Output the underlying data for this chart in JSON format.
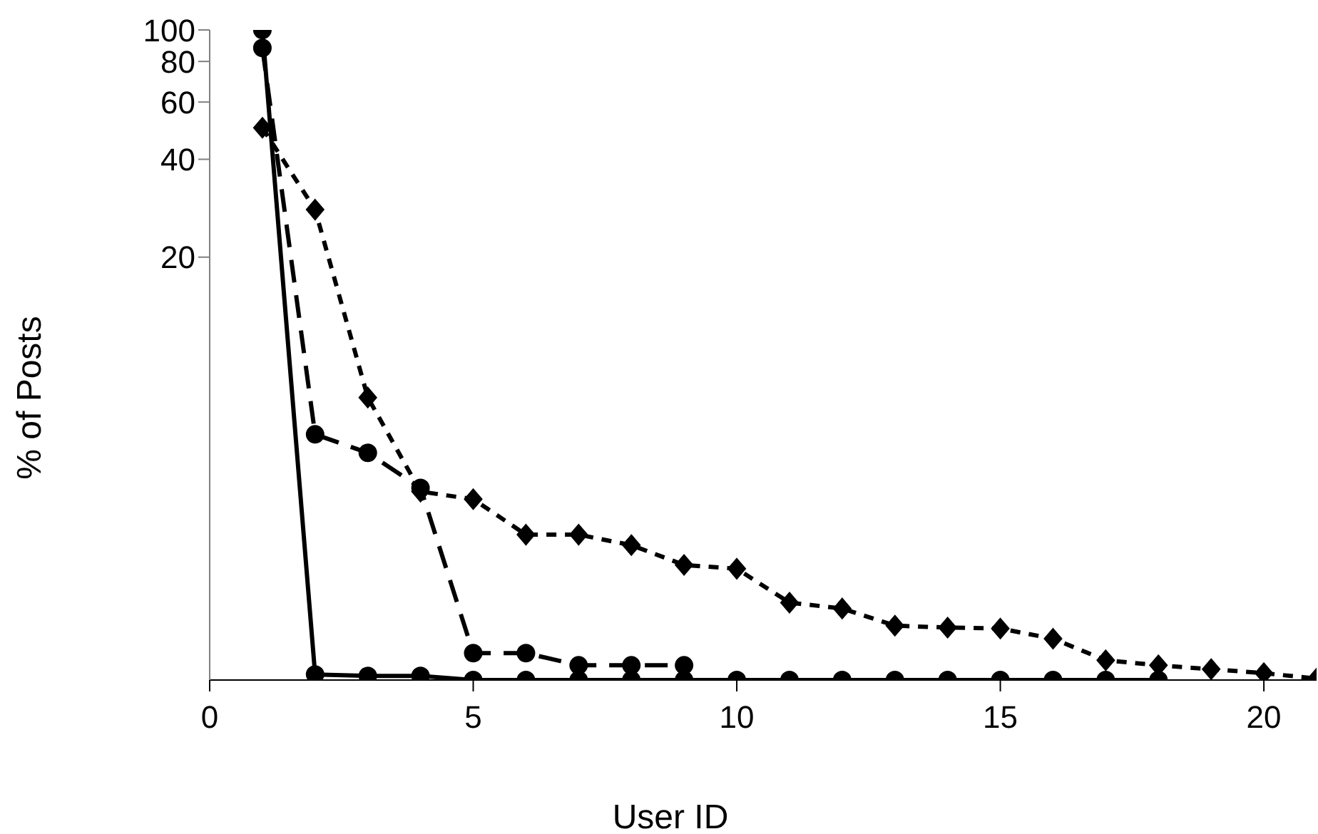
{
  "chart_data": {
    "type": "line",
    "xlabel": "User ID",
    "ylabel": "% of Posts",
    "log": "y",
    "xlim": [
      0,
      21
    ],
    "xticks": [
      0,
      5,
      10,
      15,
      20
    ],
    "ylim": [
      1,
      100
    ],
    "yticks": [
      20,
      40,
      60,
      80,
      100
    ],
    "grid": false,
    "series": [
      {
        "color": "#000000",
        "marker": "circle",
        "line_style": "solid",
        "x": [
          1,
          2,
          3,
          4,
          5,
          6,
          7,
          8,
          9,
          10,
          11,
          12,
          13,
          14,
          15,
          16,
          17,
          18
        ],
        "values": [
          100,
          1.04,
          1.03,
          1.03,
          1,
          1,
          1,
          1,
          1,
          1,
          1,
          1,
          1,
          1,
          1,
          1,
          1,
          1
        ]
      },
      {
        "color": "#000000",
        "marker": "diamond",
        "line_style": "dotted",
        "x": [
          1,
          2,
          3,
          4,
          5,
          6,
          7,
          8,
          9,
          10,
          11,
          12,
          13,
          14,
          15,
          16,
          17,
          18,
          19,
          20,
          21
        ],
        "values": [
          50,
          28,
          7.4,
          3.8,
          3.6,
          2.8,
          2.8,
          2.6,
          2.26,
          2.2,
          1.73,
          1.66,
          1.47,
          1.45,
          1.44,
          1.34,
          1.15,
          1.11,
          1.08,
          1.05,
          1.01
        ]
      },
      {
        "color": "#000000",
        "marker": "circle",
        "line_style": "dashed",
        "x": [
          1,
          2,
          3,
          4,
          5,
          6,
          7,
          8,
          9
        ],
        "values": [
          88,
          5.7,
          5.0,
          3.9,
          1.21,
          1.21,
          1.11,
          1.11,
          1.11
        ]
      }
    ]
  }
}
